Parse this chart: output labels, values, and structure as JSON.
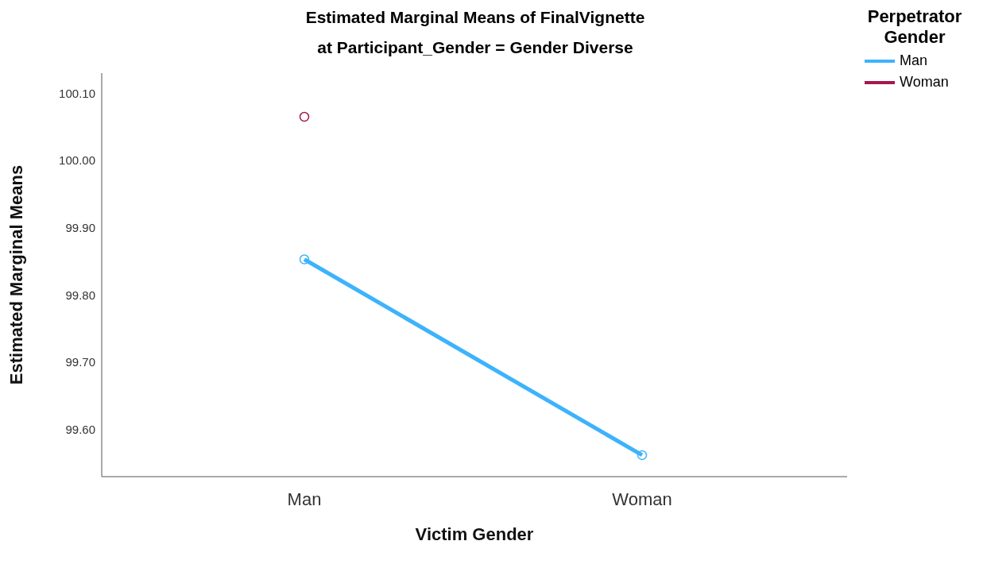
{
  "chart_data": {
    "type": "line",
    "title": "Estimated Marginal Means of FinalVignette",
    "subtitle": "at Participant_Gender = Gender Diverse",
    "xlabel": "Victim Gender",
    "ylabel": "Estimated Marginal Means",
    "legend_title": "Perpetrator Gender",
    "categories": [
      "Man",
      "Woman"
    ],
    "series": [
      {
        "name": "Man",
        "color": "#3db3fb",
        "values": [
          99.853,
          99.562
        ]
      },
      {
        "name": "Woman",
        "color": "#a5184f",
        "values": [
          100.065,
          null
        ]
      }
    ],
    "ylim": [
      99.53,
      100.13
    ],
    "yticks": [
      {
        "value": 99.6,
        "label": "99.60"
      },
      {
        "value": 99.7,
        "label": "99.70"
      },
      {
        "value": 99.8,
        "label": "99.80"
      },
      {
        "value": 99.9,
        "label": "99.90"
      },
      {
        "value": 100.0,
        "label": "100.00"
      },
      {
        "value": 100.1,
        "label": "100.10"
      }
    ],
    "grid": false,
    "legend": "right",
    "marker": "circle",
    "line_style": "solid"
  }
}
